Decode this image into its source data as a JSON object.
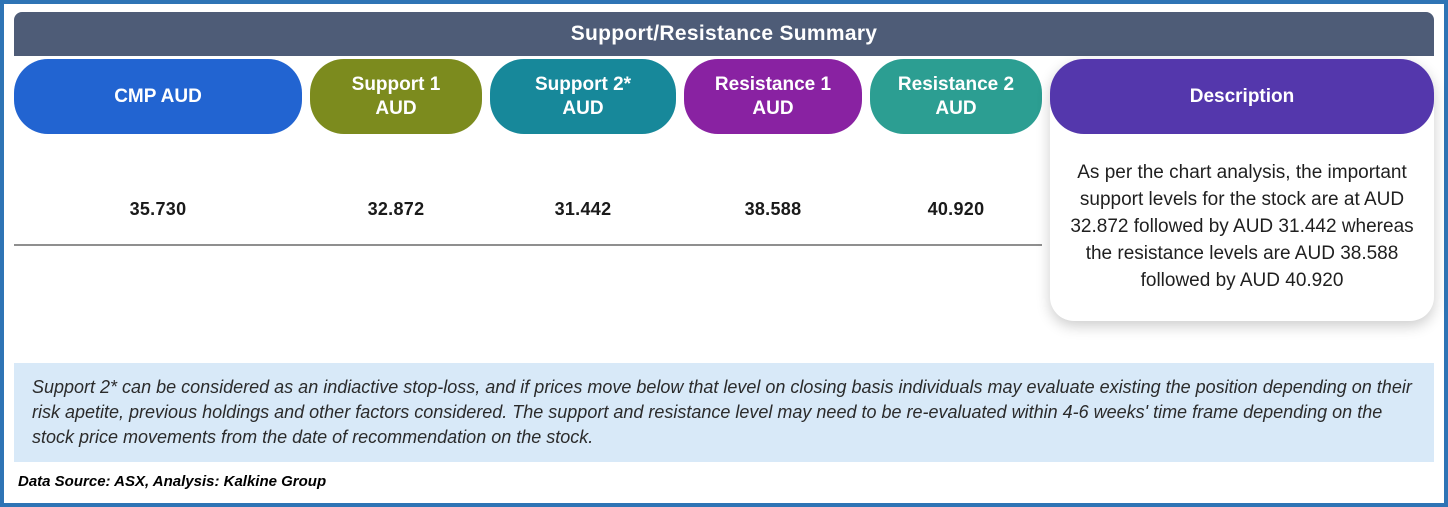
{
  "title": "Support/Resistance Summary",
  "columns": [
    {
      "label": "CMP AUD",
      "value": "35.730",
      "color": "#2264D1"
    },
    {
      "label": "Support 1\nAUD",
      "value": "32.872",
      "color": "#7C8B1E"
    },
    {
      "label": "Support 2*\nAUD",
      "value": "31.442",
      "color": "#17889A"
    },
    {
      "label": "Resistance 1\nAUD",
      "value": "38.588",
      "color": "#8922A2"
    },
    {
      "label": "Resistance 2\nAUD",
      "value": "40.920",
      "color": "#2C9E92"
    }
  ],
  "description": {
    "label": "Description",
    "color": "#5437AC",
    "text": "As per the chart analysis, the important support levels for the stock are at AUD 32.872 followed by AUD 31.442 whereas the resistance levels are AUD 38.588 followed by AUD 40.920"
  },
  "disclaimer": "Support 2* can be considered as an indiactive stop-loss, and if prices move below that level on closing basis individuals may evaluate existing the position depending on their risk apetite, previous holdings and other factors considered. The support and resistance level may need to be re-evaluated within 4-6 weeks' time frame depending on the stock price movements from  the date of recommendation on the stock.",
  "footer": "Data Source: ASX, Analysis: Kalkine Group",
  "theme": {
    "border": "#2E74B5",
    "title_bar": "#4E5C77",
    "disclaimer_bg": "#D8E9F8"
  }
}
